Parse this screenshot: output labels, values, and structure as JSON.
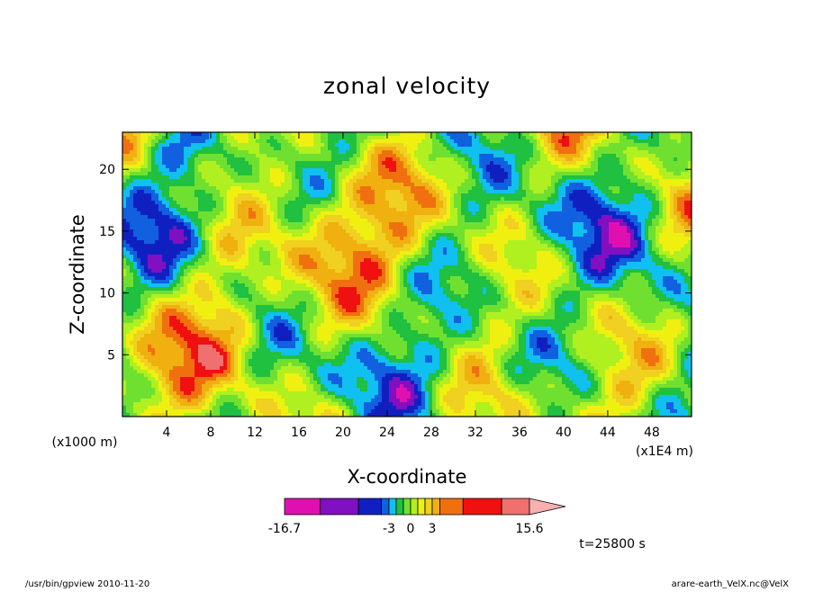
{
  "chart_data": {
    "type": "heatmap",
    "title": "zonal velocity",
    "xlabel": "X-coordinate",
    "ylabel": "Z-coordinate",
    "x_unit_label": "(x1E4 m)",
    "y_unit_label": "(x1000 m)",
    "xlim": [
      0,
      51.6
    ],
    "ylim": [
      0,
      23
    ],
    "x_ticks": [
      "4",
      "8",
      "12",
      "16",
      "20",
      "24",
      "28",
      "32",
      "36",
      "40",
      "44",
      "48"
    ],
    "y_ticks": [
      "5",
      "10",
      "15",
      "20"
    ],
    "colorbar": {
      "min_label": "-16.7",
      "max_label": "15.6",
      "mid_labels": [
        "-3",
        "0",
        "3"
      ],
      "levels": [
        -16.7,
        -12,
        -7,
        -4,
        -3,
        -2,
        -1,
        0,
        1,
        2,
        3,
        4,
        7,
        12,
        15.6
      ],
      "colors": [
        "#e010b0",
        "#8010c0",
        "#1020c0",
        "#1060e0",
        "#10c0f0",
        "#20c040",
        "#70e030",
        "#b0f020",
        "#f0f010",
        "#f0d020",
        "#f0b010",
        "#f07010",
        "#f01010",
        "#f07070"
      ]
    },
    "time_label": "t=25800 s"
  },
  "footer": {
    "left": "/usr/bin/gpview   2010-11-20",
    "right": "arare-earth_VelX.nc@VelX"
  }
}
